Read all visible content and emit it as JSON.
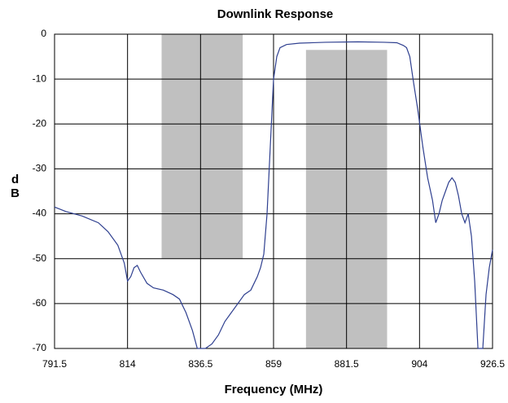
{
  "chart_data": {
    "type": "line",
    "title": "Downlink Response",
    "x_label": "Frequency (MHz)",
    "y_label": "dB",
    "color": "#2e3f8f",
    "region_color": "#c0c0c0",
    "grid": true,
    "xlim": [
      791.5,
      926.5
    ],
    "xticks": [
      791.5,
      814,
      836.5,
      859,
      881.5,
      904,
      926.5
    ],
    "ylim": [
      -70,
      0
    ],
    "yticks": [
      0,
      -10,
      -20,
      -30,
      -40,
      -50,
      -60,
      -70
    ],
    "regions": [
      {
        "x": [
          824.5,
          849.5
        ],
        "y": [
          0,
          -50
        ]
      },
      {
        "x": [
          869,
          894
        ],
        "y": [
          -3.5,
          -70
        ]
      }
    ],
    "x": [
      791.5,
      795,
      800,
      805,
      808,
      811,
      813,
      814,
      815,
      816,
      817,
      818,
      820,
      822,
      825,
      828,
      830,
      832,
      834,
      835.5,
      838,
      840,
      842,
      844,
      846,
      848,
      850,
      852,
      854,
      855,
      856,
      857,
      858,
      859,
      860,
      861,
      863,
      867,
      875,
      885,
      893,
      897,
      899,
      900,
      901,
      902,
      903.5,
      905,
      906.5,
      908,
      909,
      910,
      911,
      912,
      913,
      914,
      915,
      916,
      917,
      918,
      919,
      920,
      921,
      922,
      923.5,
      924.5,
      925.5,
      926.5
    ],
    "values": [
      -38.5,
      -39.5,
      -40.5,
      -42,
      -44,
      -47,
      -51,
      -55,
      -54,
      -52,
      -51.5,
      -53,
      -55.5,
      -56.5,
      -57,
      -58,
      -59,
      -62,
      -66,
      -70,
      -70,
      -69,
      -67,
      -64,
      -62,
      -60,
      -58,
      -57,
      -54,
      -52,
      -49,
      -40,
      -25,
      -10,
      -5,
      -3,
      -2.3,
      -2,
      -1.8,
      -1.7,
      -1.8,
      -1.9,
      -2.5,
      -3,
      -5,
      -10,
      -17,
      -25,
      -32,
      -37,
      -42,
      -40,
      -37,
      -35,
      -33,
      -32,
      -33,
      -36,
      -40,
      -42,
      -40,
      -45,
      -55,
      -70,
      -70,
      -58,
      -52,
      -48
    ]
  }
}
